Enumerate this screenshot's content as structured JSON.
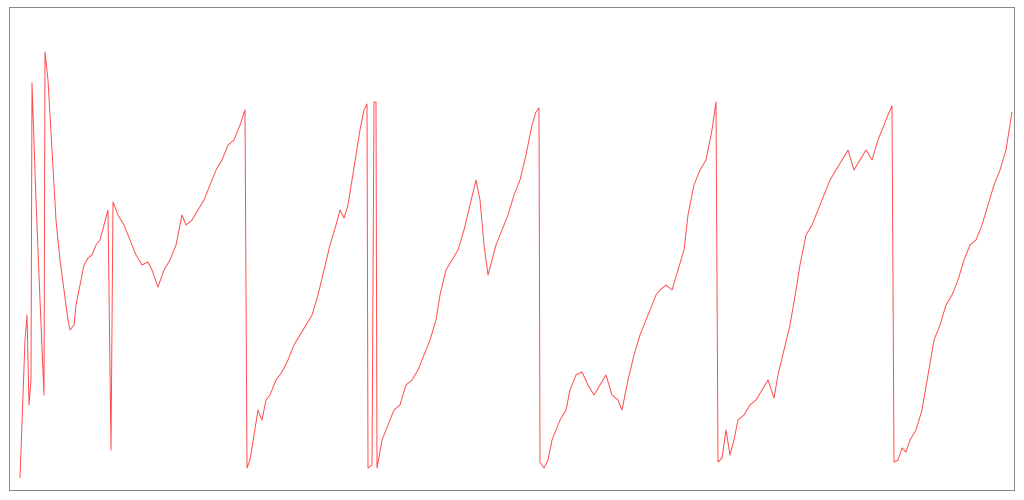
{
  "chart_data": {
    "type": "line",
    "x": [
      20,
      25,
      27,
      29,
      31,
      32,
      36,
      40,
      44,
      45,
      48,
      52,
      56,
      60,
      64,
      68,
      70,
      74,
      76,
      80,
      84,
      88,
      92,
      96,
      100,
      104,
      108,
      111,
      113,
      118,
      124,
      130,
      136,
      142,
      148,
      152,
      158,
      164,
      170,
      176,
      182,
      186,
      192,
      198,
      204,
      210,
      216,
      222,
      228,
      234,
      240,
      245,
      247,
      250,
      254,
      258,
      262,
      266,
      270,
      276,
      282,
      288,
      294,
      300,
      306,
      312,
      318,
      324,
      330,
      336,
      340,
      344,
      348,
      352,
      356,
      360,
      364,
      367,
      368,
      372,
      374,
      376,
      377,
      382,
      388,
      394,
      400,
      406,
      412,
      418,
      424,
      430,
      436,
      440,
      446,
      452,
      458,
      464,
      470,
      476,
      480,
      484,
      488,
      492,
      496,
      502,
      508,
      514,
      520,
      526,
      532,
      536,
      539,
      540,
      544,
      548,
      552,
      556,
      560,
      566,
      570,
      576,
      582,
      588,
      594,
      600,
      606,
      612,
      618,
      622,
      628,
      634,
      640,
      646,
      652,
      656,
      660,
      666,
      672,
      678,
      684,
      688,
      694,
      700,
      706,
      712,
      716,
      718,
      722,
      726,
      730,
      734,
      738,
      744,
      750,
      756,
      762,
      768,
      774,
      778,
      784,
      790,
      796,
      800,
      806,
      812,
      818,
      824,
      830,
      836,
      842,
      848,
      854,
      860,
      866,
      872,
      878,
      884,
      888,
      892,
      894,
      898,
      902,
      906,
      910,
      916,
      922,
      928,
      934,
      940,
      946,
      952,
      958,
      964,
      970,
      976,
      982,
      988,
      994,
      1000,
      1006,
      1012
    ],
    "series": [
      {
        "color": "#ff4d4d",
        "values": [
          13,
          151,
          176,
          86,
          111,
          408,
          291,
          191,
          96,
          439,
          411,
          341,
          271,
          231,
          201,
          171,
          161,
          166,
          186,
          206,
          226,
          233,
          236,
          246,
          251,
          266,
          281,
          41,
          289,
          276,
          266,
          251,
          236,
          226,
          229,
          221,
          204,
          221,
          231,
          246,
          276,
          266,
          271,
          281,
          291,
          306,
          321,
          331,
          346,
          351,
          366,
          381,
          23,
          31,
          56,
          81,
          71,
          91,
          96,
          111,
          119,
          131,
          146,
          156,
          166,
          176,
          196,
          221,
          246,
          266,
          281,
          273,
          286,
          311,
          336,
          361,
          381,
          387,
          23,
          26,
          389,
          389,
          23,
          51,
          66,
          81,
          86,
          106,
          111,
          121,
          136,
          151,
          171,
          196,
          221,
          231,
          241,
          261,
          286,
          311,
          291,
          246,
          216,
          231,
          246,
          261,
          276,
          296,
          311,
          336,
          366,
          379,
          383,
          29,
          23,
          31,
          51,
          61,
          71,
          81,
          101,
          116,
          119,
          106,
          96,
          106,
          116,
          96,
          91,
          81,
          111,
          136,
          156,
          171,
          186,
          196,
          201,
          206,
          201,
          221,
          241,
          276,
          306,
          321,
          331,
          361,
          389,
          29,
          33,
          61,
          36,
          51,
          71,
          76,
          86,
          91,
          101,
          111,
          93,
          116,
          141,
          166,
          201,
          226,
          256,
          266,
          281,
          296,
          311,
          321,
          331,
          341,
          321,
          331,
          341,
          331,
          351,
          366,
          376,
          385,
          29,
          31,
          43,
          39,
          51,
          61,
          81,
          116,
          151,
          166,
          186,
          196,
          211,
          231,
          246,
          251,
          266,
          286,
          306,
          321,
          341,
          379
        ]
      }
    ],
    "xlim": [
      9,
      1015
    ],
    "ylim": [
      0,
      484
    ]
  }
}
